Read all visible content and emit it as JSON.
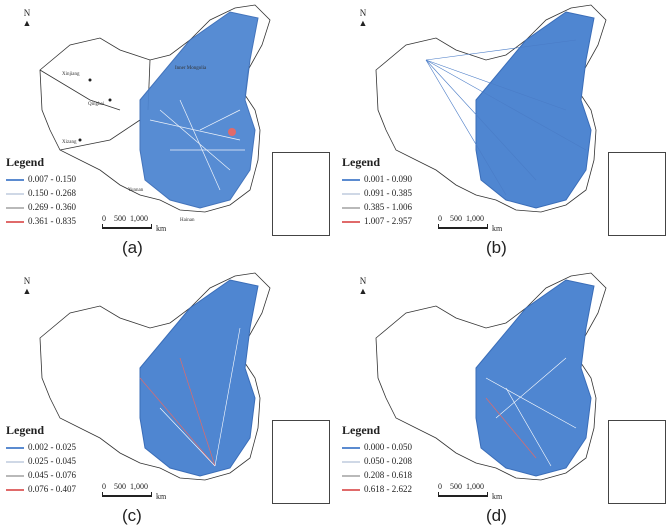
{
  "panels": [
    {
      "caption": "(a)",
      "legend": {
        "title": "Legend",
        "items": [
          {
            "range": "0.007 - 0.150",
            "color": "#5b8bd0"
          },
          {
            "range": "0.150 - 0.268",
            "color": "#cfd8e6"
          },
          {
            "range": "0.269 - 0.360",
            "color": "#b9b9b9"
          },
          {
            "range": "0.361 - 0.835",
            "color": "#e06a6a"
          }
        ]
      }
    },
    {
      "caption": "(b)",
      "legend": {
        "title": "Legend",
        "items": [
          {
            "range": "0.001 - 0.090",
            "color": "#5b8bd0"
          },
          {
            "range": "0.091 - 0.385",
            "color": "#cfd8e6"
          },
          {
            "range": "0.385 - 1.006",
            "color": "#b9b9b9"
          },
          {
            "range": "1.007 - 2.957",
            "color": "#e06a6a"
          }
        ]
      }
    },
    {
      "caption": "(c)",
      "legend": {
        "title": "Legend",
        "items": [
          {
            "range": "0.002 - 0.025",
            "color": "#5b8bd0"
          },
          {
            "range": "0.025 - 0.045",
            "color": "#cfd8e6"
          },
          {
            "range": "0.045 - 0.076",
            "color": "#b9b9b9"
          },
          {
            "range": "0.076 - 0.407",
            "color": "#e06a6a"
          }
        ]
      }
    },
    {
      "caption": "(d)",
      "legend": {
        "title": "Legend",
        "items": [
          {
            "range": "0.000 - 0.050",
            "color": "#5b8bd0"
          },
          {
            "range": "0.050 - 0.208",
            "color": "#cfd8e6"
          },
          {
            "range": "0.208 - 0.618",
            "color": "#b9b9b9"
          },
          {
            "range": "0.618 - 2.622",
            "color": "#e06a6a"
          }
        ]
      }
    }
  ],
  "scale": {
    "ticks": [
      "0",
      "500",
      "1,000"
    ],
    "unit": "km"
  },
  "north_label": "N",
  "city_labels": {
    "xinjiang": "Xinjiang",
    "qinghai": "Qinghai",
    "xizang": "Xizang",
    "inner_mongolia": "Inner Mongolia",
    "yunnan": "Yunnan",
    "hainan": "Hainan"
  },
  "colors": {
    "flow": "#4a7cc7",
    "fill": "#4f86d1",
    "outline": "#333333",
    "hot": "#e06a6a",
    "white_line": "#ffffff"
  }
}
